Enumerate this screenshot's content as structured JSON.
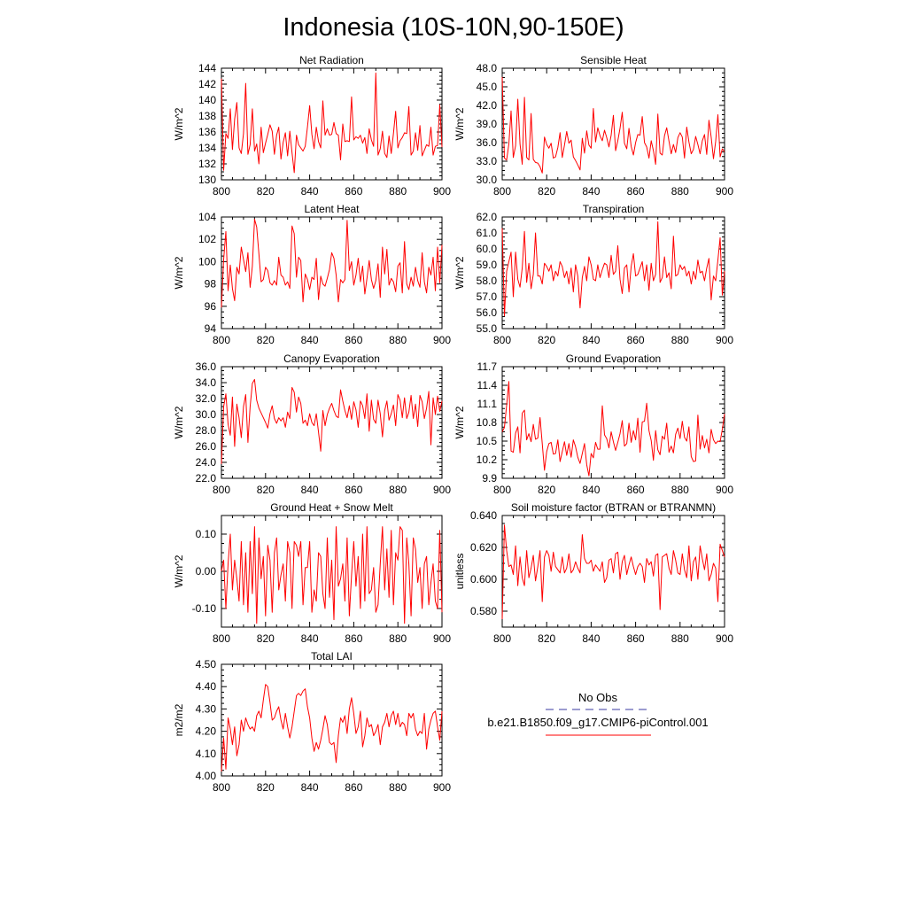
{
  "title": "Indonesia (10S-10N,90-150E)",
  "legend": {
    "obs_label": "No Obs",
    "obs_color": "#3a3aa0",
    "case_label": "b.e21.B1850.f09_g17.CMIP6-piControl.001",
    "case_color": "#ff0000"
  },
  "chart_data": [
    {
      "type": "line",
      "title": "Net Radiation",
      "ylabel": "W/m^2",
      "xlabel": "",
      "xlim": [
        800,
        900
      ],
      "xticks": [
        800,
        820,
        840,
        860,
        880,
        900
      ],
      "ylim": [
        130,
        144
      ],
      "yticks": [
        130,
        132,
        134,
        136,
        138,
        140,
        142,
        144
      ],
      "ytick_labels": [
        "130",
        "132",
        "134",
        "136",
        "138",
        "140",
        "142",
        "144"
      ],
      "x_start": 800,
      "x_step": 1,
      "color": "#ff0000",
      "values": [
        142.7,
        131.2,
        135.8,
        135.2,
        138.9,
        133.8,
        137.6,
        139.7,
        134.0,
        133.3,
        135.8,
        142.1,
        133.2,
        134.4,
        138.9,
        133.6,
        134.5,
        132.0,
        136.6,
        133.4,
        134.6,
        135.7,
        136.9,
        136.1,
        133.2,
        135.6,
        136.6,
        132.6,
        134.7,
        135.9,
        133.0,
        136.1,
        133.4,
        130.9,
        135.6,
        134.4,
        134.0,
        133.6,
        134.2,
        136.6,
        139.3,
        135.7,
        133.9,
        136.6,
        134.8,
        134.0,
        139.9,
        135.6,
        136.4,
        135.6,
        135.7,
        137.2,
        135.8,
        135.6,
        132.5,
        137.0,
        134.8,
        134.9,
        134.8,
        140.4,
        135.0,
        135.4,
        135.2,
        135.6,
        134.6,
        135.3,
        133.3,
        136.4,
        135.0,
        134.2,
        143.4,
        133.1,
        133.9,
        136.1,
        133.3,
        132.8,
        135.5,
        133.3,
        135.8,
        138.6,
        134.0,
        134.9,
        135.3,
        135.9,
        135.8,
        139.2,
        133.1,
        133.6,
        135.9,
        133.7,
        136.8,
        133.0,
        133.7,
        134.4,
        134.2,
        136.6,
        133.1,
        134.2,
        134.3,
        139.4,
        134.1
      ]
    },
    {
      "type": "line",
      "title": "Sensible Heat",
      "ylabel": "W/m^2",
      "xlabel": "",
      "xlim": [
        800,
        900
      ],
      "xticks": [
        800,
        820,
        840,
        860,
        880,
        900
      ],
      "ylim": [
        30,
        48
      ],
      "yticks": [
        30,
        33,
        36,
        39,
        42,
        45,
        48
      ],
      "ytick_labels": [
        "30.0",
        "33.0",
        "36.0",
        "39.0",
        "42.0",
        "45.0",
        "48.0"
      ],
      "x_start": 800,
      "x_step": 1,
      "color": "#ff0000",
      "values": [
        46.6,
        33.5,
        33.2,
        35.8,
        41.1,
        33.6,
        35.5,
        43.0,
        35.8,
        32.5,
        43.3,
        33.6,
        33.2,
        40.7,
        33.3,
        32.8,
        32.7,
        32.1,
        31.1,
        36.9,
        35.7,
        35.1,
        35.9,
        33.5,
        33.7,
        35.2,
        37.6,
        33.6,
        35.6,
        37.8,
        35.9,
        36.4,
        33.7,
        33.1,
        32.4,
        31.6,
        36.7,
        34.3,
        37.9,
        35.6,
        35.1,
        41.5,
        36.1,
        38.4,
        37.1,
        36.3,
        38.0,
        36.8,
        35.3,
        37.2,
        40.4,
        34.7,
        36.3,
        38.3,
        40.9,
        35.9,
        35.0,
        38.3,
        35.4,
        34.0,
        36.0,
        37.3,
        37.2,
        40.2,
        36.0,
        35.3,
        33.5,
        36.3,
        34.7,
        32.5,
        40.6,
        34.3,
        34.0,
        37.1,
        38.4,
        36.2,
        34.2,
        35.7,
        34.4,
        36.8,
        37.6,
        36.9,
        33.5,
        38.5,
        36.1,
        34.2,
        34.9,
        37.0,
        35.7,
        34.2,
        36.3,
        37.3,
        34.1,
        39.6,
        36.9,
        33.4,
        36.2,
        40.5,
        33.7,
        35.0,
        34.5
      ]
    },
    {
      "type": "line",
      "title": "Latent Heat",
      "ylabel": "W/m^2",
      "xlabel": "",
      "xlim": [
        800,
        900
      ],
      "xticks": [
        800,
        820,
        840,
        860,
        880,
        900
      ],
      "ylim": [
        94,
        104
      ],
      "yticks": [
        94,
        96,
        98,
        100,
        102,
        104
      ],
      "ytick_labels": [
        "94",
        "96",
        "98",
        "100",
        "102",
        "104"
      ],
      "x_start": 800,
      "x_step": 1,
      "color": "#ff0000",
      "values": [
        95.9,
        100.2,
        102.7,
        97.4,
        99.7,
        97.6,
        96.5,
        99.5,
        98.9,
        101.3,
        100.2,
        99.1,
        100.8,
        97.7,
        99.6,
        103.8,
        103.1,
        100.7,
        98.2,
        98.4,
        99.5,
        99.2,
        98.1,
        97.9,
        98.3,
        97.9,
        100.4,
        98.8,
        98.6,
        97.9,
        98.2,
        97.6,
        103.2,
        102.5,
        98.6,
        100.4,
        100.1,
        96.4,
        98.9,
        98.4,
        97.5,
        98.6,
        98.4,
        100.3,
        96.6,
        98.7,
        98.0,
        97.8,
        98.5,
        99.3,
        100.8,
        100.3,
        98.8,
        96.4,
        98.4,
        98.1,
        98.4,
        103.7,
        99.2,
        100.0,
        97.9,
        98.8,
        100.3,
        98.2,
        99.6,
        97.1,
        98.5,
        100.1,
        98.4,
        97.6,
        98.3,
        99.8,
        96.8,
        101.3,
        98.9,
        101.1,
        97.9,
        98.5,
        98.2,
        97.3,
        99.6,
        99.9,
        97.2,
        101.8,
        98.0,
        97.5,
        98.6,
        97.8,
        99.5,
        98.3,
        97.7,
        100.8,
        98.2,
        97.2,
        99.5,
        98.8,
        100.4,
        97.4,
        101.3,
        98.1,
        101.5
      ]
    },
    {
      "type": "line",
      "title": "Transpiration",
      "ylabel": "W/m^2",
      "xlabel": "",
      "xlim": [
        800,
        900
      ],
      "xticks": [
        800,
        820,
        840,
        860,
        880,
        900
      ],
      "ylim": [
        55,
        62
      ],
      "yticks": [
        55,
        56,
        57,
        58,
        59,
        60,
        61,
        62
      ],
      "ytick_labels": [
        "55.0",
        "56.0",
        "57.0",
        "58.0",
        "59.0",
        "60.0",
        "61.0",
        "62.0"
      ],
      "x_start": 800,
      "x_step": 1,
      "color": "#ff0000",
      "values": [
        61.3,
        55.8,
        58.6,
        59.2,
        59.8,
        57.0,
        59.8,
        58.1,
        57.6,
        58.8,
        61.1,
        57.9,
        59.1,
        57.5,
        58.4,
        61.0,
        58.3,
        58.3,
        57.8,
        59.1,
        58.9,
        58.6,
        59.0,
        58.0,
        58.6,
        58.3,
        59.2,
        58.9,
        58.2,
        58.6,
        57.8,
        58.8,
        57.3,
        59.0,
        58.3,
        56.3,
        58.2,
        58.9,
        58.0,
        59.5,
        59.0,
        58.1,
        58.0,
        59.0,
        58.2,
        58.7,
        59.1,
        59.0,
        58.2,
        59.6,
        58.4,
        58.6,
        60.2,
        58.1,
        57.2,
        58.8,
        59.0,
        57.3,
        58.9,
        59.7,
        58.3,
        58.4,
        58.8,
        59.2,
        58.0,
        59.0,
        57.4,
        59.1,
        58.0,
        58.4,
        61.7,
        57.9,
        58.2,
        59.5,
        58.2,
        58.5,
        57.5,
        60.8,
        58.3,
        58.4,
        59.0,
        58.7,
        58.9,
        58.3,
        58.6,
        57.8,
        58.6,
        58.1,
        59.3,
        58.5,
        58.6,
        58.0,
        58.8,
        59.4,
        56.8,
        58.3,
        58.0,
        59.3,
        60.7,
        57.1,
        58.6
      ]
    },
    {
      "type": "line",
      "title": "Canopy Evaporation",
      "ylabel": "W/m^2",
      "xlabel": "",
      "xlim": [
        800,
        900
      ],
      "xticks": [
        800,
        820,
        840,
        860,
        880,
        900
      ],
      "ylim": [
        22,
        36
      ],
      "yticks": [
        22,
        24,
        26,
        28,
        30,
        32,
        34,
        36
      ],
      "ytick_labels": [
        "22.0",
        "24.0",
        "26.0",
        "28.0",
        "30.0",
        "32.0",
        "34.0",
        "36.0"
      ],
      "x_start": 800,
      "x_step": 1,
      "color": "#ff0000",
      "values": [
        23.8,
        31.0,
        32.6,
        28.8,
        27.4,
        32.2,
        26.0,
        31.3,
        29.6,
        27.1,
        31.0,
        32.5,
        26.5,
        31.0,
        33.9,
        34.4,
        31.8,
        30.8,
        30.2,
        29.6,
        29.0,
        28.3,
        30.1,
        31.1,
        29.5,
        28.9,
        29.6,
        29.2,
        29.6,
        28.4,
        30.3,
        29.5,
        33.4,
        32.8,
        30.3,
        32.2,
        31.4,
        28.9,
        29.3,
        28.6,
        30.1,
        29.0,
        28.6,
        30.1,
        27.8,
        25.4,
        30.5,
        28.6,
        30.0,
        30.8,
        31.4,
        30.5,
        29.8,
        29.6,
        33.1,
        31.7,
        30.5,
        29.6,
        31.1,
        29.4,
        31.6,
        30.6,
        28.4,
        31.7,
        31.1,
        29.5,
        32.6,
        27.9,
        31.8,
        29.4,
        28.9,
        31.8,
        30.1,
        27.2,
        30.5,
        31.7,
        29.3,
        30.1,
        31.2,
        28.6,
        32.5,
        31.8,
        29.6,
        32.1,
        29.5,
        30.3,
        32.4,
        29.5,
        31.3,
        28.5,
        32.4,
        31.6,
        29.5,
        30.8,
        32.9,
        26.2,
        32.1,
        30.0,
        32.3,
        30.4,
        31.7
      ]
    },
    {
      "type": "line",
      "title": "Ground Evaporation",
      "ylabel": "W/m^2",
      "xlabel": "",
      "xlim": [
        800,
        900
      ],
      "xticks": [
        800,
        820,
        840,
        860,
        880,
        900
      ],
      "ylim": [
        9.9,
        11.7
      ],
      "yticks": [
        9.9,
        10.2,
        10.5,
        10.8,
        11.1,
        11.4,
        11.7
      ],
      "ytick_labels": [
        "9.9",
        "10.2",
        "10.5",
        "10.8",
        "11.1",
        "11.4",
        "11.7"
      ],
      "x_start": 800,
      "x_step": 1,
      "color": "#ff0000",
      "values": [
        10.65,
        10.72,
        11.08,
        11.46,
        10.34,
        10.32,
        10.63,
        10.73,
        10.31,
        10.95,
        11.0,
        10.52,
        10.62,
        10.49,
        10.77,
        10.53,
        10.55,
        10.88,
        10.46,
        10.03,
        10.33,
        10.46,
        10.48,
        10.29,
        10.3,
        10.52,
        10.17,
        10.33,
        10.49,
        10.27,
        10.46,
        10.24,
        10.52,
        10.41,
        10.24,
        10.14,
        10.3,
        10.46,
        10.12,
        9.94,
        10.3,
        10.23,
        10.48,
        10.37,
        10.37,
        11.07,
        10.6,
        10.54,
        10.39,
        10.65,
        10.49,
        10.35,
        10.48,
        10.62,
        10.83,
        10.42,
        10.46,
        10.79,
        10.48,
        10.67,
        10.52,
        10.87,
        10.32,
        10.81,
        10.82,
        11.11,
        10.67,
        10.51,
        10.19,
        10.67,
        10.36,
        10.28,
        10.58,
        10.53,
        10.79,
        10.32,
        10.42,
        10.31,
        10.61,
        10.71,
        10.54,
        10.82,
        10.56,
        10.5,
        10.73,
        10.25,
        10.17,
        10.18,
        10.92,
        10.37,
        10.59,
        10.39,
        10.53,
        10.31,
        10.69,
        10.52,
        10.46,
        10.5,
        10.49,
        10.69,
        10.94
      ]
    },
    {
      "type": "line",
      "title": "Ground Heat + Snow Melt",
      "ylabel": "W/m^2",
      "xlabel": "",
      "xlim": [
        800,
        900
      ],
      "xticks": [
        800,
        820,
        840,
        860,
        880,
        900
      ],
      "ylim": [
        -0.15,
        0.15
      ],
      "yticks": [
        -0.1,
        0.0,
        0.1
      ],
      "ytick_labels": [
        "-0.10",
        "0.00",
        "0.10"
      ],
      "x_start": 800,
      "x_step": 1,
      "color": "#ff0000",
      "values": [
        0.0,
        0.03,
        -0.1,
        0.02,
        0.1,
        -0.05,
        0.03,
        -0.02,
        -0.08,
        0.08,
        -0.09,
        0.05,
        -0.11,
        0.08,
        -0.06,
        0.12,
        -0.14,
        0.09,
        -0.02,
        0.04,
        -0.12,
        0.07,
        0.03,
        -0.11,
        0.05,
        0.09,
        -0.05,
        -0.01,
        0.02,
        -0.08,
        0.08,
        0.05,
        -0.1,
        0.08,
        0.07,
        0.04,
        0.08,
        -0.09,
        0.01,
        0.01,
        0.08,
        -0.11,
        -0.05,
        -0.08,
        0.05,
        0.04,
        -0.06,
        -0.1,
        0.09,
        -0.07,
        0.03,
        -0.13,
        0.12,
        -0.04,
        -0.02,
        0.02,
        -0.08,
        0.09,
        -0.12,
        -0.01,
        0.08,
        -0.04,
        0.04,
        -0.1,
        0.1,
        -0.08,
        0.12,
        -0.06,
        -0.05,
        0.01,
        -0.11,
        -0.09,
        0.02,
        0.12,
        -0.05,
        0.06,
        -0.07,
        0.11,
        -0.09,
        0.05,
        0.03,
        0.12,
        0.11,
        -0.14,
        0.09,
        0.02,
        -0.12,
        0.09,
        0.06,
        -0.03,
        0.01,
        -0.1,
        0.02,
        0.04,
        -0.09,
        -0.03,
        0.02,
        -0.08,
        -0.1,
        0.11,
        -0.11
      ]
    },
    {
      "type": "line",
      "title": "Soil moisture factor (BTRAN or BTRANMN)",
      "ylabel": "unitless",
      "xlabel": "",
      "xlim": [
        800,
        900
      ],
      "xticks": [
        800,
        820,
        840,
        860,
        880,
        900
      ],
      "ylim": [
        0.57,
        0.64
      ],
      "yticks": [
        0.58,
        0.6,
        0.62,
        0.64
      ],
      "ytick_labels": [
        "0.580",
        "0.600",
        "0.620",
        "0.640"
      ],
      "x_start": 800,
      "x_step": 1,
      "color": "#ff0000",
      "values": [
        0.575,
        0.634,
        0.618,
        0.608,
        0.609,
        0.603,
        0.621,
        0.596,
        0.614,
        0.601,
        0.596,
        0.618,
        0.601,
        0.607,
        0.615,
        0.599,
        0.608,
        0.618,
        0.586,
        0.614,
        0.618,
        0.615,
        0.605,
        0.617,
        0.608,
        0.606,
        0.604,
        0.614,
        0.604,
        0.607,
        0.616,
        0.604,
        0.606,
        0.611,
        0.607,
        0.604,
        0.628,
        0.613,
        0.61,
        0.61,
        0.612,
        0.605,
        0.609,
        0.607,
        0.605,
        0.611,
        0.598,
        0.601,
        0.612,
        0.613,
        0.604,
        0.616,
        0.617,
        0.6,
        0.611,
        0.615,
        0.603,
        0.609,
        0.614,
        0.608,
        0.603,
        0.608,
        0.61,
        0.608,
        0.598,
        0.613,
        0.609,
        0.611,
        0.602,
        0.615,
        0.616,
        0.581,
        0.614,
        0.615,
        0.616,
        0.607,
        0.603,
        0.618,
        0.612,
        0.604,
        0.603,
        0.616,
        0.606,
        0.601,
        0.621,
        0.599,
        0.611,
        0.614,
        0.6,
        0.621,
        0.613,
        0.606,
        0.616,
        0.599,
        0.603,
        0.61,
        0.607,
        0.586,
        0.622,
        0.618,
        0.614
      ]
    },
    {
      "type": "line",
      "title": "Total LAI",
      "ylabel": "m2/m2",
      "xlabel": "",
      "xlim": [
        800,
        900
      ],
      "xticks": [
        800,
        820,
        840,
        860,
        880,
        900
      ],
      "ylim": [
        4.0,
        4.5
      ],
      "yticks": [
        4.0,
        4.1,
        4.2,
        4.3,
        4.4,
        4.5
      ],
      "ytick_labels": [
        "4.00",
        "4.10",
        "4.20",
        "4.30",
        "4.40",
        "4.50"
      ],
      "x_start": 800,
      "x_step": 1,
      "color": "#ff0000",
      "values": [
        4.02,
        4.17,
        4.03,
        4.26,
        4.21,
        4.14,
        4.22,
        4.09,
        4.14,
        4.25,
        4.2,
        4.26,
        4.23,
        4.21,
        4.22,
        4.2,
        4.27,
        4.29,
        4.26,
        4.34,
        4.41,
        4.4,
        4.33,
        4.25,
        4.26,
        4.29,
        4.31,
        4.25,
        4.21,
        4.28,
        4.22,
        4.17,
        4.22,
        4.29,
        4.36,
        4.37,
        4.36,
        4.38,
        4.39,
        4.31,
        4.26,
        4.17,
        4.11,
        4.15,
        4.12,
        4.16,
        4.21,
        4.27,
        4.23,
        4.15,
        4.14,
        4.15,
        4.06,
        4.18,
        4.26,
        4.24,
        4.27,
        4.19,
        4.3,
        4.35,
        4.28,
        4.19,
        4.22,
        4.29,
        4.13,
        4.18,
        4.26,
        4.22,
        4.23,
        4.18,
        4.2,
        4.23,
        4.14,
        4.22,
        4.24,
        4.28,
        4.22,
        4.27,
        4.29,
        4.23,
        4.28,
        4.22,
        4.24,
        4.23,
        4.18,
        4.28,
        4.26,
        4.28,
        4.21,
        4.18,
        4.2,
        4.19,
        4.28,
        4.12,
        4.21,
        4.25,
        4.28,
        4.29,
        4.22,
        4.16,
        4.29
      ]
    }
  ]
}
